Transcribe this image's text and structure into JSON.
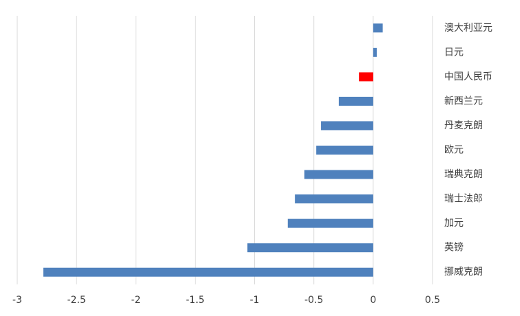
{
  "chart_data": {
    "type": "bar",
    "orientation": "horizontal",
    "categories": [
      "澳大利亚元",
      "日元",
      "中国人民币",
      "新西兰元",
      "丹麦克朗",
      "欧元",
      "瑞典克朗",
      "瑞士法郎",
      "加元",
      "英镑",
      "挪威克朗"
    ],
    "values": [
      0.08,
      0.03,
      -0.12,
      -0.29,
      -0.44,
      -0.48,
      -0.58,
      -0.66,
      -0.72,
      -1.06,
      -2.78
    ],
    "colors": [
      "#4f81bd",
      "#4f81bd",
      "#ff0000",
      "#4f81bd",
      "#4f81bd",
      "#4f81bd",
      "#4f81bd",
      "#4f81bd",
      "#4f81bd",
      "#4f81bd",
      "#4f81bd"
    ],
    "xlim": [
      -3,
      0.5
    ],
    "xticks": [
      -3,
      -2.5,
      -2,
      -1.5,
      -1,
      -0.5,
      0,
      0.5
    ],
    "grid": true
  }
}
